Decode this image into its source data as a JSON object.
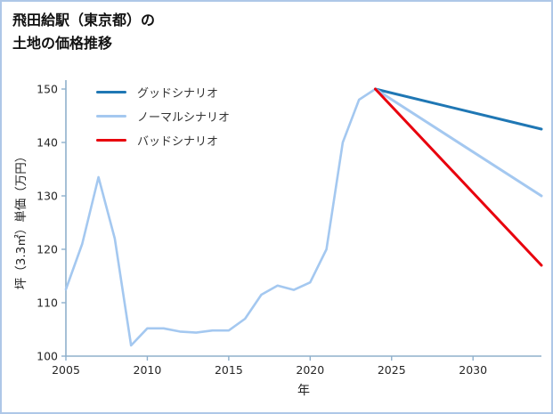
{
  "title": {
    "line1": "飛田給駅（東京都）の",
    "line2": "土地の価格推移"
  },
  "chart_data": {
    "type": "line",
    "title": "飛田給駅（東京都）の土地の価格推移",
    "xlabel": "年",
    "ylabel": "坪（3.3㎡）単価（万円）",
    "xlim": [
      2005,
      2034.2
    ],
    "ylim": [
      100,
      151
    ],
    "xticks": [
      2005,
      2010,
      2015,
      2020,
      2025,
      2030
    ],
    "yticks": [
      100,
      110,
      120,
      130,
      140,
      150
    ],
    "grid": false,
    "legend_position": "upper-left",
    "axis_color": "#8fb0cc",
    "border_color": "#aec7e8",
    "legend": [
      {
        "label": "グッドシナリオ",
        "color": "#1f77b4"
      },
      {
        "label": "ノーマルシナリオ",
        "color": "#a4c8f0"
      },
      {
        "label": "バッドシナリオ",
        "color": "#e8000d"
      }
    ],
    "series": [
      {
        "name": "price-history",
        "slug": "price-history",
        "color": "#a4c8f0",
        "width": 2.6,
        "x": [
          2005,
          2006,
          2007,
          2008,
          2009,
          2010,
          2011,
          2012,
          2013,
          2014,
          2015,
          2016,
          2017,
          2018,
          2019,
          2020,
          2021,
          2022,
          2023,
          2024
        ],
        "y": [
          112.5,
          121,
          133.5,
          122,
          102,
          105.2,
          105.2,
          104.6,
          104.4,
          104.8,
          104.8,
          107,
          111.5,
          113.2,
          112.4,
          113.8,
          120,
          140,
          148,
          150
        ]
      },
      {
        "name": "グッドシナリオ",
        "slug": "good-scenario",
        "color": "#1f77b4",
        "width": 3,
        "x": [
          2024,
          2034.2
        ],
        "y": [
          150,
          142.5
        ]
      },
      {
        "name": "ノーマルシナリオ",
        "slug": "normal-scenario",
        "color": "#a4c8f0",
        "width": 3,
        "x": [
          2024,
          2034.2
        ],
        "y": [
          150,
          130
        ]
      },
      {
        "name": "バッドシナリオ",
        "slug": "bad-scenario",
        "color": "#e8000d",
        "width": 3,
        "x": [
          2024,
          2034.2
        ],
        "y": [
          150,
          117
        ]
      }
    ]
  }
}
